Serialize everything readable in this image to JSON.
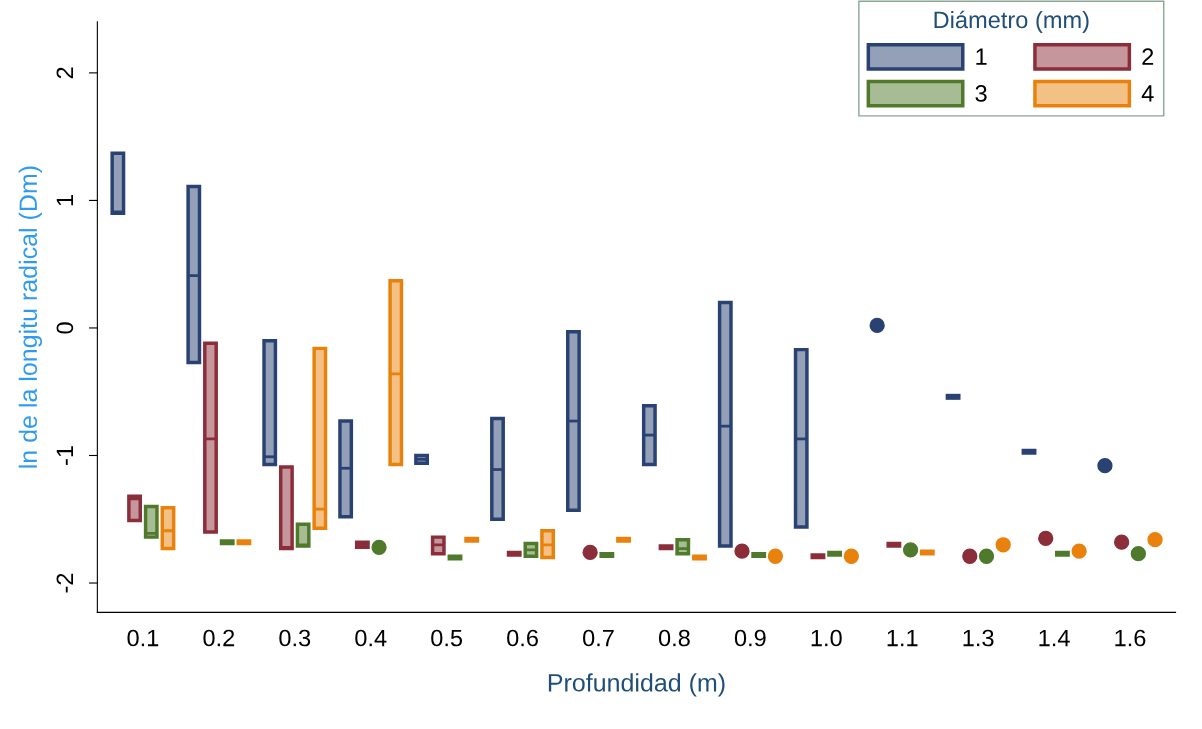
{
  "chart_data": {
    "type": "box",
    "xlabel": "Profundidad (m)",
    "ylabel": "ln de la longitu radical (Dm)",
    "legend_title": "Diámetro (mm)",
    "categories": [
      "0.1",
      "0.2",
      "0.3",
      "0.4",
      "0.5",
      "0.6",
      "0.7",
      "0.8",
      "0.9",
      "1.0",
      "1.1",
      "1.3",
      "1.4",
      "1.6"
    ],
    "ylim": [
      -2.23,
      2.4
    ],
    "yticks": [
      {
        "value": -2,
        "label": "-2"
      },
      {
        "value": -1,
        "label": "-1"
      },
      0,
      1,
      2
    ],
    "grid": false,
    "legend": "top right",
    "series": [
      {
        "name": "1",
        "color": "#2a4272",
        "boxes": [
          {
            "low": 0.9,
            "q1": 0.9,
            "median": 0.91,
            "q3": 1.37,
            "high": 1.37
          },
          {
            "low": -0.27,
            "q1": -0.27,
            "median": 0.41,
            "q3": 1.11,
            "high": 1.11
          },
          {
            "low": -1.07,
            "q1": -1.07,
            "median": -1.01,
            "q3": -0.1,
            "high": -0.1
          },
          {
            "low": -1.48,
            "q1": -1.48,
            "median": -1.1,
            "q3": -0.73,
            "high": -0.73
          },
          {
            "low": -1.06,
            "q1": -1.06,
            "median": -1.03,
            "q3": -1.0,
            "high": -1.0
          },
          {
            "low": -1.5,
            "q1": -1.5,
            "median": -1.11,
            "q3": -0.71,
            "high": -0.71
          },
          {
            "low": -1.43,
            "q1": -1.43,
            "median": -0.73,
            "q3": -0.03,
            "high": -0.03
          },
          {
            "low": -1.07,
            "q1": -1.07,
            "median": -0.84,
            "q3": -0.61,
            "high": -0.61
          },
          {
            "low": -1.71,
            "q1": -1.71,
            "median": -0.77,
            "q3": 0.2,
            "high": 0.2
          },
          {
            "low": -1.56,
            "q1": -1.56,
            "median": -0.87,
            "q3": -0.17,
            "high": -0.17
          },
          {
            "low": 0.02,
            "q1": 0.02,
            "median": 0.02,
            "q3": 0.02,
            "high": 0.02,
            "mean": 0.02
          },
          {
            "low": -0.55,
            "q1": -0.55,
            "median": -0.54,
            "q3": -0.53,
            "high": -0.53
          },
          {
            "low": -0.98,
            "q1": -0.98,
            "median": -0.97,
            "q3": -0.96,
            "high": -0.96
          },
          {
            "low": -1.08,
            "q1": -1.08,
            "median": -1.08,
            "q3": -1.08,
            "high": -1.08,
            "mean": -1.08
          }
        ]
      },
      {
        "name": "2",
        "color": "#8c2e3a",
        "boxes": [
          {
            "low": -1.51,
            "q1": -1.51,
            "median": -1.34,
            "q3": -1.32,
            "high": -1.32
          },
          {
            "low": -1.6,
            "q1": -1.6,
            "median": -0.87,
            "q3": -0.12,
            "high": -0.12
          },
          {
            "low": -1.73,
            "q1": -1.73,
            "median": -1.72,
            "q3": -1.09,
            "high": -1.09
          },
          {
            "low": -1.72,
            "q1": -1.72,
            "median": -1.7,
            "q3": -1.68,
            "high": -1.68
          },
          {
            "low": -1.77,
            "q1": -1.77,
            "median": -1.7,
            "q3": -1.64,
            "high": -1.64
          },
          {
            "low": -1.78,
            "q1": -1.78,
            "median": -1.77,
            "q3": -1.76,
            "high": -1.76
          },
          {
            "low": -1.76,
            "q1": -1.76,
            "median": -1.76,
            "q3": -1.76,
            "high": -1.76,
            "mean": -1.76
          },
          {
            "low": -1.73,
            "q1": -1.73,
            "median": -1.72,
            "q3": -1.71,
            "high": -1.71
          },
          {
            "low": -1.75,
            "q1": -1.75,
            "median": -1.75,
            "q3": -1.75,
            "high": -1.75,
            "mean": -1.75
          },
          {
            "low": -1.8,
            "q1": -1.8,
            "median": -1.79,
            "q3": -1.78,
            "high": -1.78
          },
          {
            "low": -1.71,
            "q1": -1.71,
            "median": -1.7,
            "q3": -1.69,
            "high": -1.69
          },
          {
            "low": -1.79,
            "q1": -1.79,
            "median": -1.79,
            "q3": -1.79,
            "high": -1.79,
            "mean": -1.79
          },
          {
            "low": -1.65,
            "q1": -1.65,
            "median": -1.65,
            "q3": -1.65,
            "high": -1.65,
            "mean": -1.65
          },
          {
            "low": -1.68,
            "q1": -1.68,
            "median": -1.68,
            "q3": -1.68,
            "high": -1.68,
            "mean": -1.68
          }
        ]
      },
      {
        "name": "3",
        "color": "#4f7a2c",
        "boxes": [
          {
            "low": -1.64,
            "q1": -1.64,
            "median": -1.61,
            "q3": -1.4,
            "high": -1.4
          },
          {
            "low": -1.69,
            "q1": -1.69,
            "median": -1.68,
            "q3": -1.67,
            "high": -1.67
          },
          {
            "low": -1.71,
            "q1": -1.71,
            "median": -1.7,
            "q3": -1.54,
            "high": -1.54
          },
          {
            "low": -1.72,
            "q1": -1.72,
            "median": -1.72,
            "q3": -1.72,
            "high": -1.72,
            "mean": -1.72
          },
          {
            "low": -1.81,
            "q1": -1.81,
            "median": -1.8,
            "q3": -1.79,
            "high": -1.79
          },
          {
            "low": -1.79,
            "q1": -1.79,
            "median": -1.74,
            "q3": -1.69,
            "high": -1.69
          },
          {
            "low": -1.79,
            "q1": -1.79,
            "median": -1.78,
            "q3": -1.77,
            "high": -1.77
          },
          {
            "low": -1.77,
            "q1": -1.77,
            "median": -1.73,
            "q3": -1.66,
            "high": -1.66
          },
          {
            "low": -1.79,
            "q1": -1.79,
            "median": -1.78,
            "q3": -1.77,
            "high": -1.77
          },
          {
            "low": -1.78,
            "q1": -1.78,
            "median": -1.77,
            "q3": -1.76,
            "high": -1.76
          },
          {
            "low": -1.74,
            "q1": -1.74,
            "median": -1.74,
            "q3": -1.74,
            "high": -1.74,
            "mean": -1.74
          },
          {
            "low": -1.79,
            "q1": -1.79,
            "median": -1.79,
            "q3": -1.79,
            "high": -1.79,
            "mean": -1.79
          },
          {
            "low": -1.78,
            "q1": -1.78,
            "median": -1.77,
            "q3": -1.76,
            "high": -1.76
          },
          {
            "low": -1.77,
            "q1": -1.77,
            "median": -1.77,
            "q3": -1.77,
            "high": -1.77,
            "mean": -1.77
          }
        ]
      },
      {
        "name": "4",
        "color": "#e8820c",
        "boxes": [
          {
            "low": -1.73,
            "q1": -1.73,
            "median": -1.59,
            "q3": -1.41,
            "high": -1.41
          },
          {
            "low": -1.69,
            "q1": -1.69,
            "median": -1.68,
            "q3": -1.67,
            "high": -1.67
          },
          {
            "low": -1.57,
            "q1": -1.57,
            "median": -1.42,
            "q3": -0.16,
            "high": -0.16
          },
          {
            "low": -1.07,
            "q1": -1.07,
            "median": -0.36,
            "q3": 0.37,
            "high": 0.37
          },
          {
            "low": -1.67,
            "q1": -1.67,
            "median": -1.66,
            "q3": -1.65,
            "high": -1.65
          },
          {
            "low": -1.8,
            "q1": -1.8,
            "median": -1.7,
            "q3": -1.59,
            "high": -1.59
          },
          {
            "low": -1.67,
            "q1": -1.67,
            "median": -1.66,
            "q3": -1.65,
            "high": -1.65
          },
          {
            "low": -1.81,
            "q1": -1.81,
            "median": -1.8,
            "q3": -1.79,
            "high": -1.79
          },
          {
            "low": -1.79,
            "q1": -1.79,
            "median": -1.79,
            "q3": -1.79,
            "high": -1.79,
            "mean": -1.79
          },
          {
            "low": -1.79,
            "q1": -1.79,
            "median": -1.79,
            "q3": -1.79,
            "high": -1.79,
            "mean": -1.79
          },
          {
            "low": -1.77,
            "q1": -1.77,
            "median": -1.76,
            "q3": -1.75,
            "high": -1.75
          },
          {
            "low": -1.7,
            "q1": -1.7,
            "median": -1.7,
            "q3": -1.7,
            "high": -1.7,
            "mean": -1.7
          },
          {
            "low": -1.75,
            "q1": -1.75,
            "median": -1.75,
            "q3": -1.75,
            "high": -1.75,
            "mean": -1.75
          },
          {
            "low": -1.66,
            "q1": -1.66,
            "median": -1.66,
            "q3": -1.66,
            "high": -1.66,
            "mean": -1.66
          }
        ]
      }
    ]
  }
}
